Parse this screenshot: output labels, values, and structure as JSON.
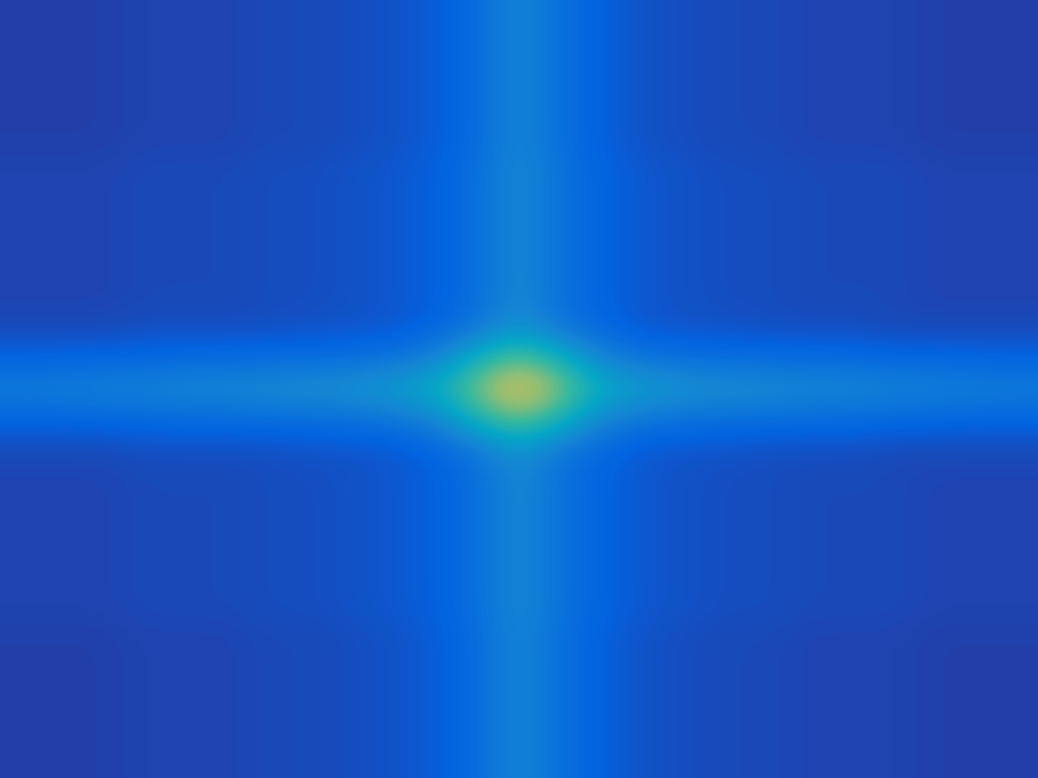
{
  "chart_data": {
    "type": "heatmap",
    "tick_labels": false,
    "zlim": [
      0,
      1
    ],
    "cells": [
      [
        0.05,
        0.05,
        0.05,
        0.06,
        0.06,
        0.06,
        0.07,
        0.07,
        0.08,
        0.09,
        0.11,
        0.16,
        0.26,
        0.17,
        0.12,
        0.09,
        0.08,
        0.07,
        0.07,
        0.06,
        0.06,
        0.06,
        0.05,
        0.05,
        0.05
      ],
      [
        0.05,
        0.05,
        0.05,
        0.06,
        0.06,
        0.06,
        0.07,
        0.07,
        0.08,
        0.09,
        0.11,
        0.16,
        0.26,
        0.17,
        0.12,
        0.09,
        0.08,
        0.07,
        0.07,
        0.06,
        0.06,
        0.06,
        0.05,
        0.05,
        0.05
      ],
      [
        0.05,
        0.05,
        0.05,
        0.06,
        0.06,
        0.06,
        0.07,
        0.07,
        0.08,
        0.09,
        0.11,
        0.16,
        0.26,
        0.17,
        0.12,
        0.09,
        0.08,
        0.07,
        0.07,
        0.06,
        0.06,
        0.06,
        0.05,
        0.05,
        0.05
      ],
      [
        0.05,
        0.05,
        0.05,
        0.06,
        0.06,
        0.06,
        0.07,
        0.07,
        0.08,
        0.09,
        0.11,
        0.16,
        0.26,
        0.17,
        0.12,
        0.09,
        0.08,
        0.07,
        0.07,
        0.06,
        0.06,
        0.06,
        0.05,
        0.05,
        0.05
      ],
      [
        0.05,
        0.05,
        0.05,
        0.06,
        0.06,
        0.06,
        0.07,
        0.07,
        0.08,
        0.09,
        0.11,
        0.16,
        0.26,
        0.17,
        0.12,
        0.09,
        0.08,
        0.07,
        0.07,
        0.06,
        0.06,
        0.06,
        0.05,
        0.05,
        0.05
      ],
      [
        0.06,
        0.06,
        0.06,
        0.07,
        0.07,
        0.07,
        0.08,
        0.08,
        0.09,
        0.1,
        0.12,
        0.17,
        0.27,
        0.18,
        0.13,
        0.1,
        0.09,
        0.08,
        0.08,
        0.07,
        0.07,
        0.07,
        0.06,
        0.06,
        0.06
      ],
      [
        0.06,
        0.06,
        0.06,
        0.07,
        0.07,
        0.07,
        0.08,
        0.08,
        0.09,
        0.1,
        0.12,
        0.17,
        0.27,
        0.18,
        0.13,
        0.1,
        0.09,
        0.08,
        0.08,
        0.07,
        0.07,
        0.07,
        0.06,
        0.06,
        0.06
      ],
      [
        0.06,
        0.06,
        0.06,
        0.07,
        0.07,
        0.07,
        0.08,
        0.08,
        0.09,
        0.1,
        0.12,
        0.17,
        0.27,
        0.18,
        0.13,
        0.1,
        0.09,
        0.08,
        0.08,
        0.07,
        0.07,
        0.07,
        0.06,
        0.06,
        0.06
      ],
      [
        0.06,
        0.06,
        0.06,
        0.07,
        0.07,
        0.07,
        0.08,
        0.08,
        0.09,
        0.1,
        0.12,
        0.17,
        0.27,
        0.18,
        0.13,
        0.1,
        0.09,
        0.08,
        0.08,
        0.07,
        0.07,
        0.07,
        0.06,
        0.06,
        0.06
      ],
      [
        0.06,
        0.06,
        0.06,
        0.07,
        0.07,
        0.07,
        0.08,
        0.08,
        0.09,
        0.1,
        0.12,
        0.17,
        0.27,
        0.18,
        0.13,
        0.1,
        0.09,
        0.08,
        0.08,
        0.07,
        0.07,
        0.07,
        0.06,
        0.06,
        0.06
      ],
      [
        0.07,
        0.07,
        0.07,
        0.08,
        0.08,
        0.08,
        0.08,
        0.09,
        0.09,
        0.1,
        0.13,
        0.19,
        0.3,
        0.19,
        0.14,
        0.1,
        0.09,
        0.09,
        0.08,
        0.08,
        0.08,
        0.07,
        0.07,
        0.07,
        0.07
      ],
      [
        0.13,
        0.13,
        0.14,
        0.14,
        0.15,
        0.15,
        0.16,
        0.16,
        0.17,
        0.19,
        0.24,
        0.42,
        0.55,
        0.42,
        0.24,
        0.19,
        0.17,
        0.16,
        0.16,
        0.15,
        0.15,
        0.14,
        0.14,
        0.13,
        0.13
      ],
      [
        0.22,
        0.23,
        0.24,
        0.25,
        0.26,
        0.27,
        0.28,
        0.29,
        0.31,
        0.34,
        0.4,
        0.6,
        0.8,
        0.6,
        0.4,
        0.34,
        0.31,
        0.29,
        0.28,
        0.27,
        0.26,
        0.25,
        0.24,
        0.23,
        0.22
      ],
      [
        0.13,
        0.13,
        0.14,
        0.14,
        0.15,
        0.15,
        0.16,
        0.16,
        0.17,
        0.19,
        0.24,
        0.42,
        0.55,
        0.42,
        0.24,
        0.19,
        0.17,
        0.16,
        0.16,
        0.15,
        0.15,
        0.14,
        0.14,
        0.13,
        0.13
      ],
      [
        0.07,
        0.07,
        0.07,
        0.08,
        0.08,
        0.08,
        0.08,
        0.09,
        0.09,
        0.1,
        0.13,
        0.19,
        0.3,
        0.19,
        0.14,
        0.1,
        0.09,
        0.09,
        0.08,
        0.08,
        0.08,
        0.07,
        0.07,
        0.07,
        0.07
      ],
      [
        0.06,
        0.06,
        0.06,
        0.07,
        0.07,
        0.07,
        0.08,
        0.08,
        0.09,
        0.1,
        0.12,
        0.17,
        0.27,
        0.18,
        0.13,
        0.1,
        0.09,
        0.08,
        0.08,
        0.07,
        0.07,
        0.07,
        0.06,
        0.06,
        0.06
      ],
      [
        0.06,
        0.06,
        0.06,
        0.07,
        0.07,
        0.07,
        0.08,
        0.08,
        0.09,
        0.1,
        0.12,
        0.17,
        0.27,
        0.18,
        0.13,
        0.1,
        0.09,
        0.08,
        0.08,
        0.07,
        0.07,
        0.07,
        0.06,
        0.06,
        0.06
      ],
      [
        0.06,
        0.06,
        0.06,
        0.07,
        0.07,
        0.07,
        0.08,
        0.08,
        0.09,
        0.1,
        0.12,
        0.17,
        0.27,
        0.18,
        0.13,
        0.1,
        0.09,
        0.08,
        0.08,
        0.07,
        0.07,
        0.07,
        0.06,
        0.06,
        0.06
      ],
      [
        0.06,
        0.06,
        0.06,
        0.07,
        0.07,
        0.07,
        0.08,
        0.08,
        0.09,
        0.1,
        0.12,
        0.17,
        0.27,
        0.18,
        0.13,
        0.1,
        0.09,
        0.08,
        0.08,
        0.07,
        0.07,
        0.07,
        0.06,
        0.06,
        0.06
      ],
      [
        0.06,
        0.06,
        0.06,
        0.07,
        0.07,
        0.07,
        0.08,
        0.08,
        0.09,
        0.1,
        0.12,
        0.17,
        0.27,
        0.18,
        0.13,
        0.1,
        0.09,
        0.08,
        0.08,
        0.07,
        0.07,
        0.07,
        0.06,
        0.06,
        0.06
      ],
      [
        0.05,
        0.05,
        0.05,
        0.06,
        0.06,
        0.06,
        0.07,
        0.07,
        0.08,
        0.09,
        0.11,
        0.16,
        0.26,
        0.17,
        0.12,
        0.09,
        0.08,
        0.07,
        0.07,
        0.06,
        0.06,
        0.06,
        0.05,
        0.05,
        0.05
      ],
      [
        0.05,
        0.05,
        0.05,
        0.06,
        0.06,
        0.06,
        0.07,
        0.07,
        0.08,
        0.09,
        0.11,
        0.16,
        0.26,
        0.17,
        0.12,
        0.09,
        0.08,
        0.07,
        0.07,
        0.06,
        0.06,
        0.06,
        0.05,
        0.05,
        0.05
      ],
      [
        0.05,
        0.05,
        0.05,
        0.06,
        0.06,
        0.06,
        0.07,
        0.07,
        0.08,
        0.09,
        0.11,
        0.16,
        0.26,
        0.17,
        0.12,
        0.09,
        0.08,
        0.07,
        0.07,
        0.06,
        0.06,
        0.06,
        0.05,
        0.05,
        0.05
      ],
      [
        0.05,
        0.05,
        0.05,
        0.06,
        0.06,
        0.06,
        0.07,
        0.07,
        0.08,
        0.09,
        0.11,
        0.16,
        0.26,
        0.17,
        0.12,
        0.09,
        0.08,
        0.07,
        0.07,
        0.06,
        0.06,
        0.06,
        0.05,
        0.05,
        0.05
      ],
      [
        0.05,
        0.05,
        0.05,
        0.06,
        0.06,
        0.06,
        0.07,
        0.07,
        0.08,
        0.09,
        0.11,
        0.16,
        0.26,
        0.17,
        0.12,
        0.09,
        0.08,
        0.07,
        0.07,
        0.06,
        0.06,
        0.06,
        0.05,
        0.05,
        0.05
      ]
    ]
  }
}
